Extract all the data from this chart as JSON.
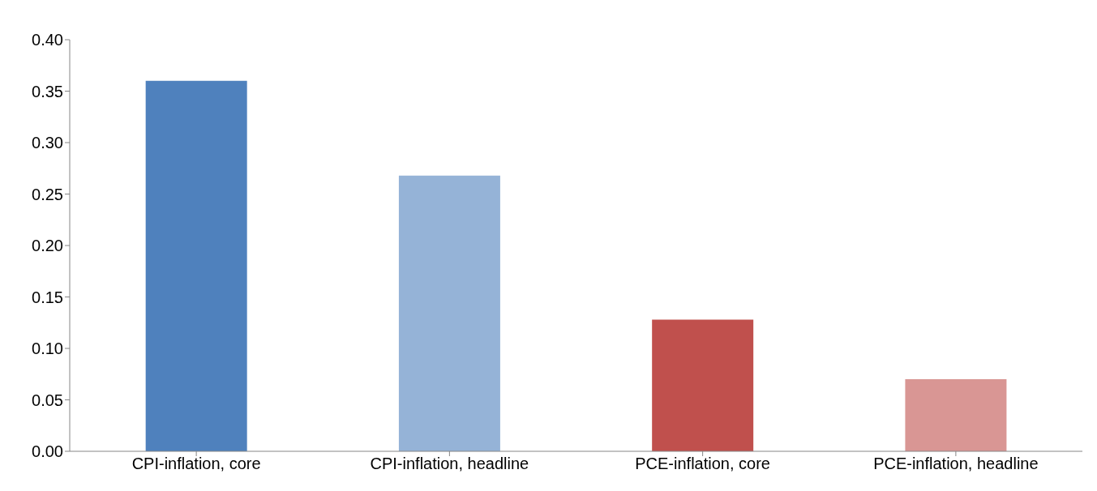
{
  "chart_data": {
    "type": "bar",
    "categories": [
      "CPI-inflation, core",
      "CPI-inflation, headline",
      "PCE-inflation, core",
      "PCE-inflation, headline"
    ],
    "values": [
      0.36,
      0.268,
      0.128,
      0.07
    ],
    "colors": [
      "#4f81bd",
      "#95b3d7",
      "#c0504d",
      "#d99694"
    ],
    "ylim": [
      0,
      0.4
    ],
    "yticks": [
      {
        "value": 0,
        "label": "0.00"
      },
      {
        "value": 0.05,
        "label": "0.05"
      },
      {
        "value": 0.1,
        "label": "0.10"
      },
      {
        "value": 0.15,
        "label": "0.15"
      },
      {
        "value": 0.2,
        "label": "0.20"
      },
      {
        "value": 0.25,
        "label": "0.25"
      },
      {
        "value": 0.3,
        "label": "0.30"
      },
      {
        "value": 0.35,
        "label": "0.35"
      },
      {
        "value": 0.4,
        "label": "0.40"
      }
    ],
    "grid": false
  }
}
